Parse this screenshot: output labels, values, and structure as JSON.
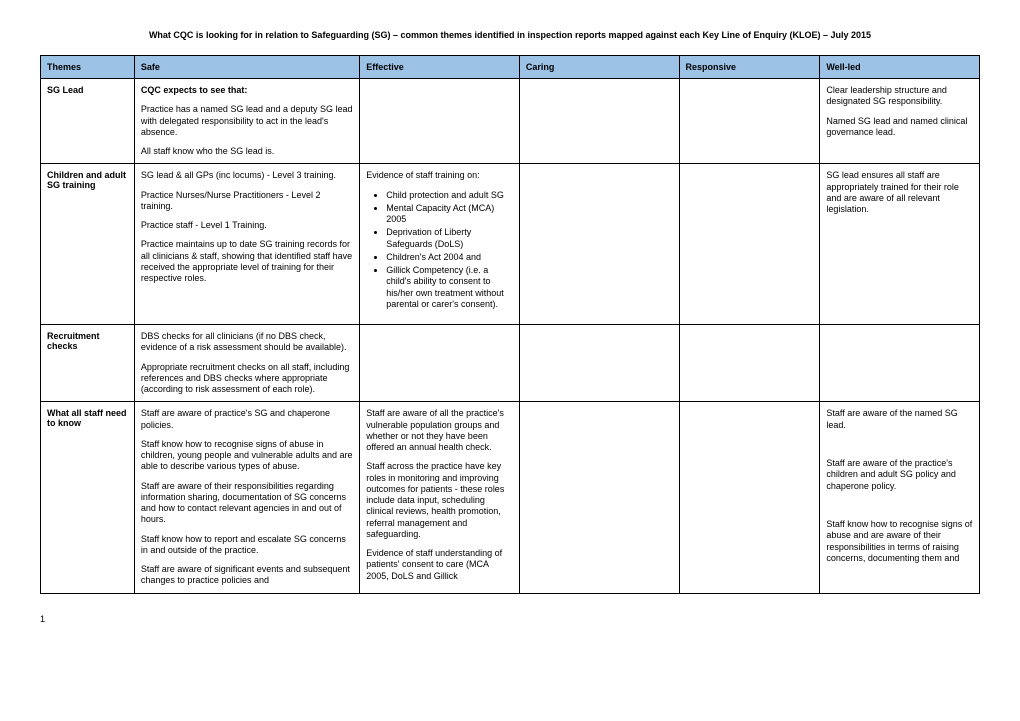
{
  "title": "What CQC is looking for in relation to Safeguarding (SG) – common themes identified in inspection reports mapped against each Key Line of Enquiry (KLOE) – July 2015",
  "header_bg": "#9cc2e5",
  "columns": [
    "Themes",
    "Safe",
    "Effective",
    "Caring",
    "Responsive",
    "Well-led"
  ],
  "rows": [
    {
      "theme": "SG Lead",
      "safe": [
        {
          "type": "p",
          "bold": true,
          "text": "CQC expects to see that:"
        },
        {
          "type": "p",
          "text": "Practice has a named SG lead and a deputy SG lead with delegated responsibility to act in the lead's absence."
        },
        {
          "type": "p",
          "text": "All staff know who the SG lead is."
        }
      ],
      "effective": [],
      "caring": [],
      "responsive": [],
      "wellled": [
        {
          "type": "p",
          "text": "Clear leadership structure and designated SG responsibility."
        },
        {
          "type": "p",
          "text": "Named SG lead and named clinical governance lead."
        }
      ]
    },
    {
      "theme": "Children and adult SG training",
      "safe": [
        {
          "type": "p",
          "text": "SG lead & all GPs (inc locums) - Level 3 training."
        },
        {
          "type": "p",
          "text": "Practice Nurses/Nurse Practitioners - Level 2 training."
        },
        {
          "type": "p",
          "text": "Practice staff - Level 1 Training."
        },
        {
          "type": "p",
          "text": "Practice maintains up to date SG training records for all clinicians & staff, showing that identified staff have received the appropriate level of training for their respective roles."
        }
      ],
      "effective": [
        {
          "type": "p",
          "text": "Evidence of staff training on:"
        },
        {
          "type": "ul",
          "items": [
            "Child protection and adult SG",
            "Mental Capacity Act (MCA) 2005",
            "Deprivation of Liberty Safeguards (DoLS)",
            "Children's Act 2004 and",
            "Gillick Competency (i.e. a child's ability to consent to his/her own treatment without parental or carer's consent)."
          ]
        }
      ],
      "caring": [],
      "responsive": [],
      "wellled": [
        {
          "type": "p",
          "text": "SG lead ensures all staff are appropriately trained for their role and are aware of all relevant legislation."
        }
      ]
    },
    {
      "theme": "Recruitment checks",
      "safe": [
        {
          "type": "p",
          "text": "DBS checks for all clinicians (if no DBS check, evidence of a risk assessment should be available)."
        },
        {
          "type": "p",
          "text": "Appropriate recruitment checks on all staff, including references and DBS checks where appropriate (according to risk assessment of each role)."
        }
      ],
      "effective": [],
      "caring": [],
      "responsive": [],
      "wellled": []
    },
    {
      "theme": "What all staff need to know",
      "safe": [
        {
          "type": "p",
          "text": "Staff are aware of practice's SG and chaperone policies."
        },
        {
          "type": "p",
          "text": "Staff know how to recognise signs of abuse in children, young people and vulnerable adults and are able to describe various types of abuse."
        },
        {
          "type": "p",
          "text": "Staff are aware of their responsibilities regarding information sharing, documentation of SG concerns and how to contact relevant agencies in and out of hours."
        },
        {
          "type": "p",
          "text": "Staff know how to report and escalate SG concerns in and outside of the practice."
        },
        {
          "type": "p",
          "text": "Staff are aware of significant events and subsequent changes to practice policies and"
        }
      ],
      "effective": [
        {
          "type": "p",
          "text": "Staff are aware of all the practice's vulnerable population groups and whether or not they have been offered an annual health check."
        },
        {
          "type": "p",
          "text": "Staff across the practice have key roles in monitoring and improving outcomes for patients - these roles include data input, scheduling clinical reviews, health promotion, referral management and safeguarding."
        },
        {
          "type": "p",
          "text": "Evidence of staff understanding of patients' consent to care (MCA 2005, DoLS and Gillick"
        }
      ],
      "caring": [],
      "responsive": [],
      "wellled": [
        {
          "type": "p",
          "text": "Staff are aware of the named SG lead."
        },
        {
          "type": "spacer"
        },
        {
          "type": "p",
          "text": "Staff are aware of the practice's children and adult SG policy and chaperone policy."
        },
        {
          "type": "spacer"
        },
        {
          "type": "p",
          "text": "Staff know how to recognise signs of abuse and are aware of their responsibilities in terms of raising concerns, documenting them and"
        }
      ]
    }
  ],
  "page_number": "1"
}
